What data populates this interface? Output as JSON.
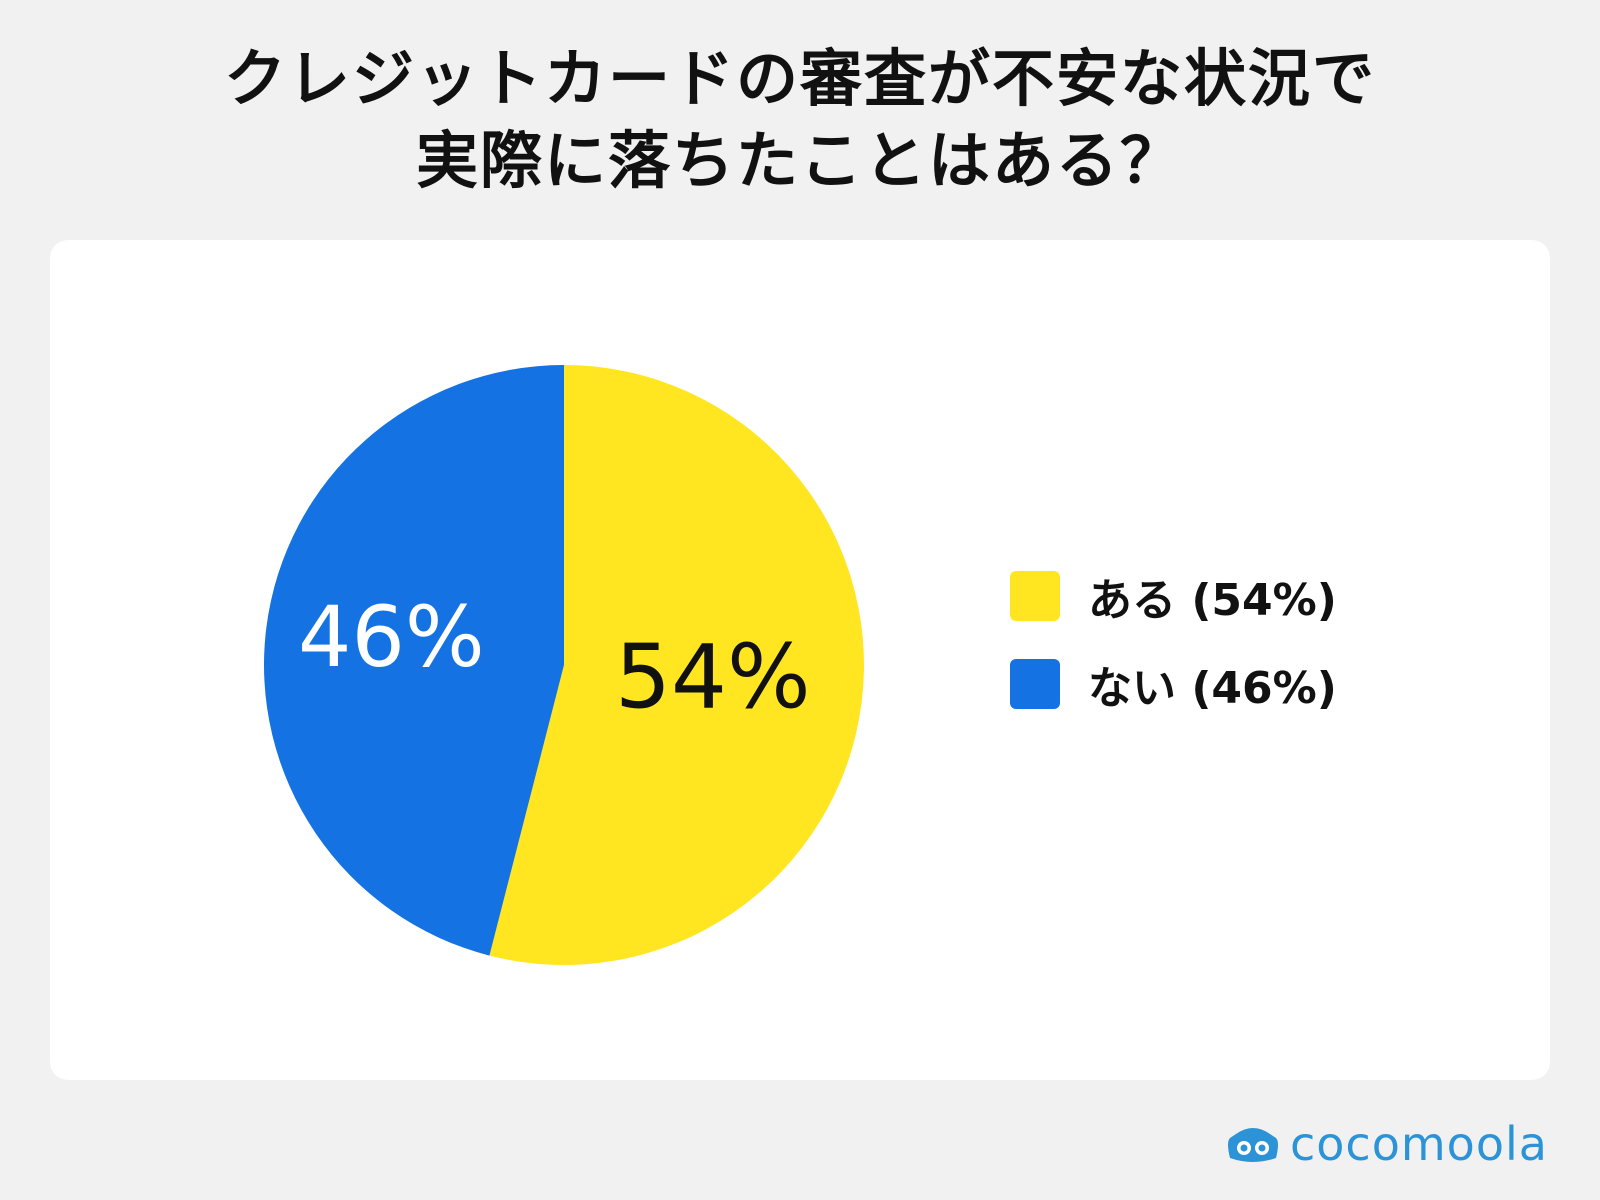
{
  "chart_data": {
    "type": "pie",
    "title": "クレジットカードの審査が不安な状況で実際に落ちたことはある？",
    "title_lines": [
      "クレジットカードの審査が不安な状況で",
      "実際に落ちたことはある？"
    ],
    "categories": [
      "ある",
      "ない"
    ],
    "values": [
      54,
      46
    ],
    "unit": "%",
    "slice_labels": [
      "54%",
      "46%"
    ],
    "legend": {
      "position": "right",
      "entries": [
        "ある (54%)",
        "ない (46%)"
      ]
    },
    "colors": [
      "#ffe620",
      "#1472e3"
    ],
    "label_colors": [
      "#111111",
      "#ffffff"
    ]
  },
  "branding": {
    "logo_text": "cocomoola",
    "logo_color": "#2b93d6"
  }
}
